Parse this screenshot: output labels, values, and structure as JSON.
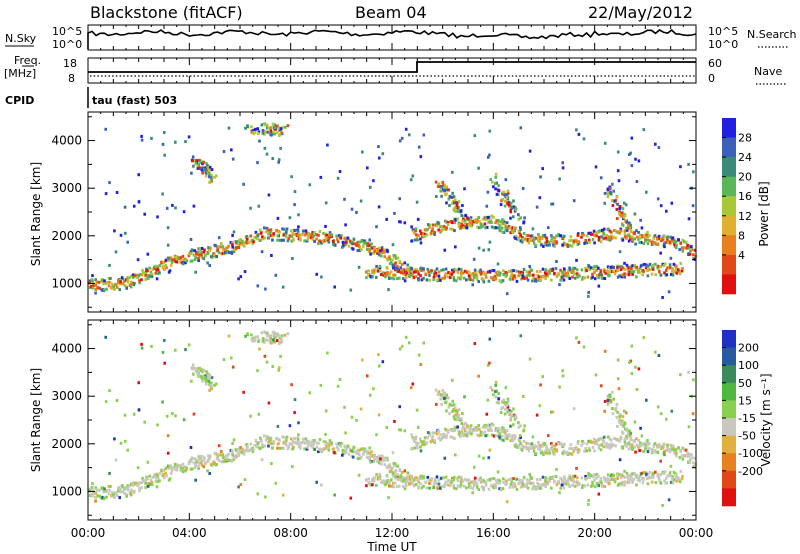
{
  "header": {
    "station": "Blackstone (fitACF)",
    "beam": "Beam 04",
    "date": "22/May/2012"
  },
  "panels": {
    "nsky_label": "N.Sky",
    "nsearch_label": "N.Search",
    "noise_left_ticks": [
      "10^5",
      "10^0"
    ],
    "noise_right_ticks": [
      "10^5",
      "10^0"
    ],
    "freq_label_top": "Freq.",
    "freq_label_unit": "[MHz]",
    "freq_ticks": [
      "18",
      "8"
    ],
    "nave_label": "Nave",
    "nave_ticks": [
      "60",
      "0"
    ],
    "cpid_label": "CPID",
    "cpid_text": "tau (fast) 503"
  },
  "chart_data": [
    {
      "type": "heatmap",
      "panel": "power",
      "ylabel": "Slant Range [km]",
      "xlabel": "",
      "yticks": [
        "1000",
        "2000",
        "3000",
        "4000"
      ],
      "ylim": [
        400,
        4600
      ],
      "xlim": [
        0,
        24
      ],
      "colorbar_label": "Power [dB]",
      "colorbar_ticks": [
        "4",
        "8",
        "12",
        "16",
        "20",
        "24",
        "28"
      ],
      "colorbar_colors": [
        "#2020e0",
        "#3a60b8",
        "#3a8a78",
        "#58b858",
        "#a8c838",
        "#e0b030",
        "#e88020",
        "#e04818",
        "#e01010"
      ],
      "bands": [
        {
          "x": [
            0.0,
            1.5,
            3.5,
            6.0,
            7.0,
            9.5,
            11.5,
            12.8
          ],
          "y": [
            950,
            1000,
            1500,
            1800,
            2050,
            1950,
            1700,
            1200
          ]
        },
        {
          "x": [
            12.8,
            14.0,
            16.0,
            17.5,
            19.0,
            21.0,
            23.5,
            24.0
          ],
          "y": [
            2000,
            2200,
            2300,
            1900,
            1900,
            2050,
            1800,
            1600
          ]
        },
        {
          "x": [
            11.0,
            13.0,
            16.0,
            19.0,
            21.0,
            23.5
          ],
          "y": [
            1250,
            1200,
            1150,
            1200,
            1250,
            1300
          ]
        }
      ],
      "patches": [
        {
          "x": [
            13.8,
            14.4,
            15.0
          ],
          "y": [
            3100,
            2700,
            2300
          ]
        },
        {
          "x": [
            16.0,
            16.6,
            17.2
          ],
          "y": [
            3200,
            2700,
            2300
          ]
        },
        {
          "x": [
            20.5,
            21.0,
            21.4
          ],
          "y": [
            3000,
            2500,
            2100
          ]
        },
        {
          "x": [
            6.3,
            7.2,
            7.8
          ],
          "y": [
            4200,
            4250,
            4200
          ]
        },
        {
          "x": [
            4.2,
            4.6,
            5.0
          ],
          "y": [
            3600,
            3400,
            3200
          ]
        }
      ]
    },
    {
      "type": "heatmap",
      "panel": "velocity",
      "ylabel": "Slant Range [km]",
      "xlabel": "Time UT",
      "xticks": [
        "00:00",
        "04:00",
        "08:00",
        "12:00",
        "16:00",
        "20:00",
        "00:00"
      ],
      "yticks": [
        "1000",
        "2000",
        "3000",
        "4000"
      ],
      "ylim": [
        400,
        4600
      ],
      "xlim": [
        0,
        24
      ],
      "colorbar_label": "Velocity [m s⁻¹]",
      "colorbar_ticks": [
        "200",
        "100",
        "50",
        "15",
        "-15",
        "-50",
        "-100",
        "-200"
      ],
      "colorbar_colors": [
        "#2030c0",
        "#285aa0",
        "#3a8a5a",
        "#50b840",
        "#8ad050",
        "#c8c8c0",
        "#e0b040",
        "#e88020",
        "#e04818",
        "#e01010"
      ]
    }
  ]
}
